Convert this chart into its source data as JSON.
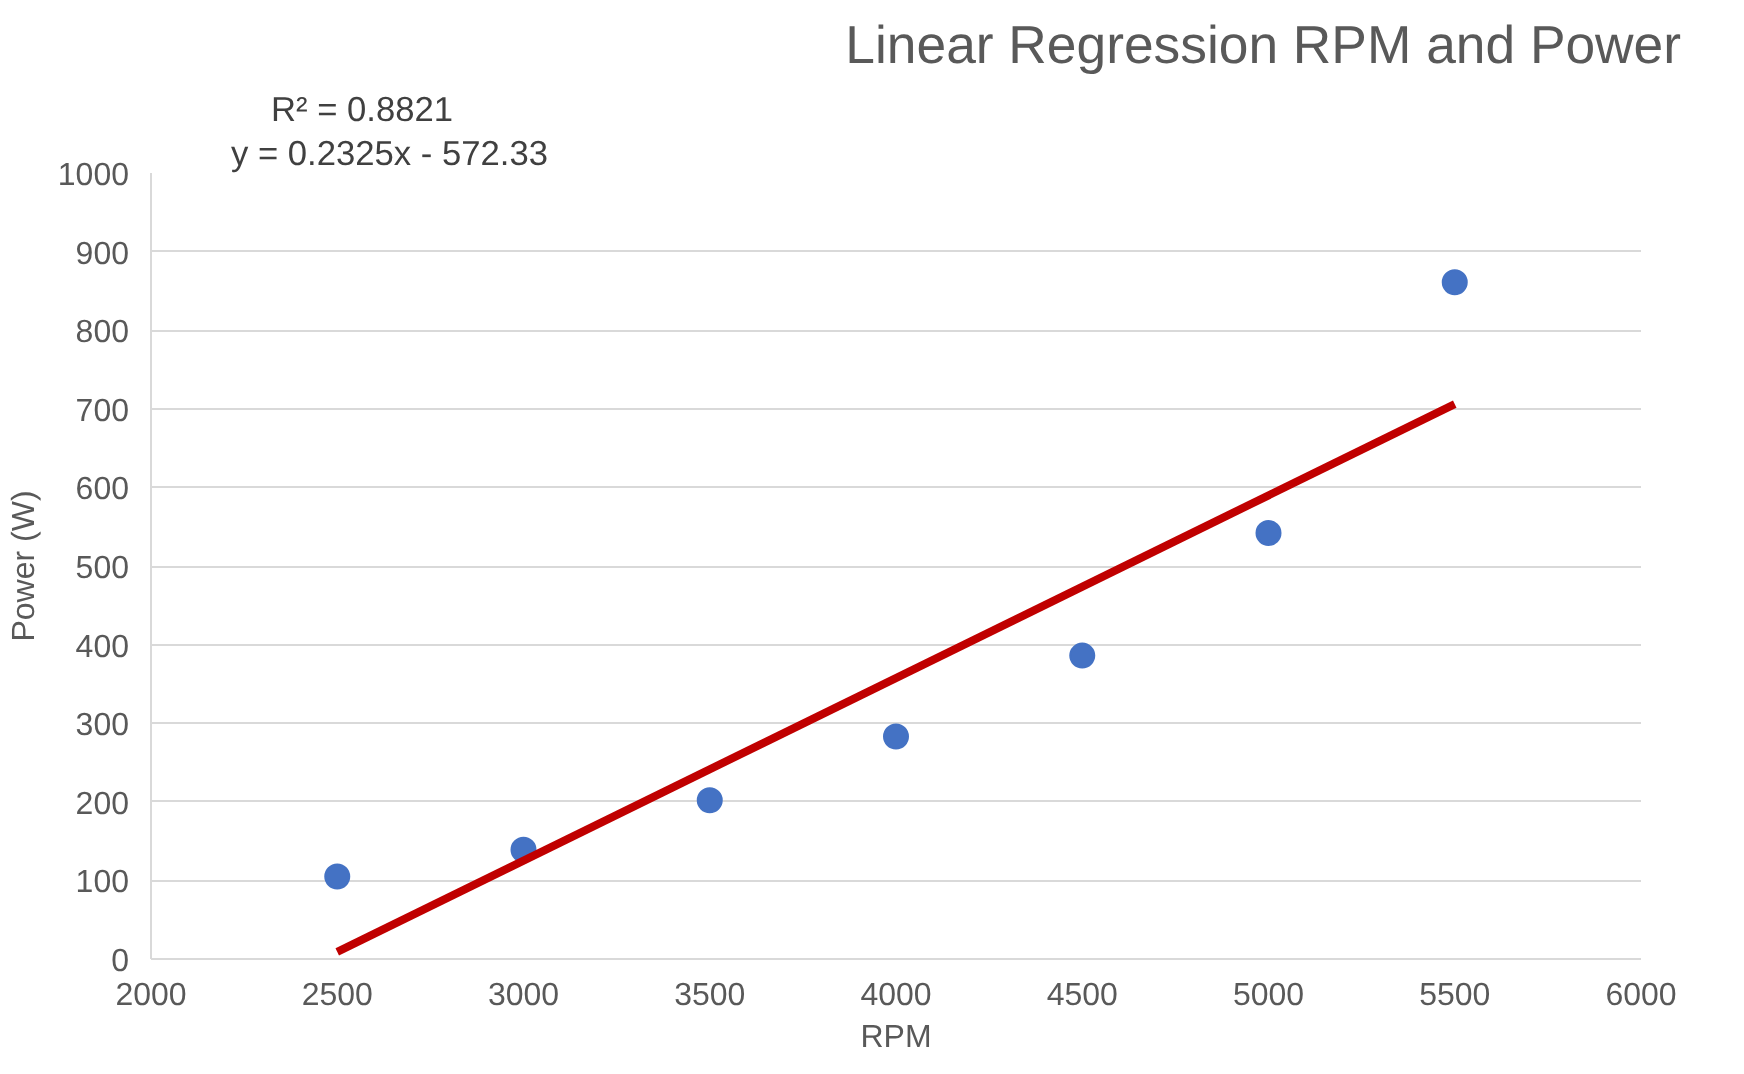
{
  "chart_data": {
    "type": "scatter",
    "title": "Linear Regression RPM and Power",
    "xlabel": "RPM",
    "ylabel": "Power (W)",
    "annotations": [
      "y = 0.2325x - 572.33",
      "R² = 0.8821"
    ],
    "series": [
      {
        "marker": "circle",
        "color": "#4472c4",
        "x": [
          2500,
          3000,
          3500,
          4000,
          4500,
          5000,
          5500
        ],
        "values": [
          105,
          139,
          202,
          283,
          386,
          542,
          861
        ]
      },
      {
        "type": "line",
        "color": "#c00000",
        "x": [
          2500,
          5500
        ],
        "values": [
          9,
          706
        ]
      }
    ],
    "xlim": [
      2000,
      6000
    ],
    "xticks": [
      2000,
      2500,
      3000,
      3500,
      4000,
      4500,
      5000,
      5500,
      6000
    ],
    "ylim": [
      0,
      1000
    ],
    "yticks": [
      0,
      100,
      200,
      300,
      400,
      500,
      600,
      700,
      800,
      900,
      1000
    ],
    "grid": "y"
  }
}
